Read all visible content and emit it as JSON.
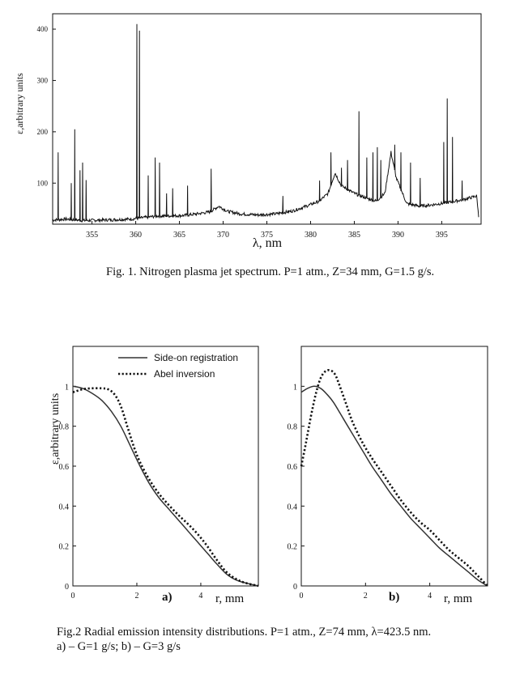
{
  "chart_data": [
    {
      "type": "line",
      "ylabel": "ε,arbitrary units",
      "xlabel": "λ, nm",
      "xlim": [
        350.5,
        399.5
      ],
      "ylim": [
        20,
        430
      ],
      "xticks": [
        355,
        360,
        365,
        370,
        375,
        380,
        385,
        390,
        395
      ],
      "yticks": [
        100,
        200,
        300,
        400
      ],
      "series": [
        {
          "baseline": [
            [
              350.5,
              28
            ],
            [
              352,
              30
            ],
            [
              354,
              27
            ],
            [
              356,
              28
            ],
            [
              358,
              29
            ],
            [
              359.5,
              30
            ],
            [
              361,
              33
            ],
            [
              362.5,
              36
            ],
            [
              364,
              36
            ],
            [
              365.5,
              37
            ],
            [
              367,
              40
            ],
            [
              368.5,
              44
            ],
            [
              369.5,
              55
            ],
            [
              370.5,
              45
            ],
            [
              372,
              40
            ],
            [
              374,
              38
            ],
            [
              376,
              40
            ],
            [
              378,
              46
            ],
            [
              379.5,
              55
            ],
            [
              381,
              65
            ],
            [
              382,
              80
            ],
            [
              382.8,
              120
            ],
            [
              383.5,
              95
            ],
            [
              385,
              80
            ],
            [
              386.5,
              70
            ],
            [
              387.5,
              65
            ],
            [
              388.5,
              80
            ],
            [
              389.2,
              160
            ],
            [
              389.8,
              110
            ],
            [
              391,
              60
            ],
            [
              392.5,
              55
            ],
            [
              394,
              58
            ],
            [
              396,
              63
            ],
            [
              397.5,
              68
            ],
            [
              399,
              75
            ],
            [
              399.3,
              20
            ]
          ],
          "lines": [
            [
              351.1,
              160
            ],
            [
              352.6,
              100
            ],
            [
              353.0,
              205
            ],
            [
              353.6,
              125
            ],
            [
              353.9,
              140
            ],
            [
              354.3,
              106
            ],
            [
              360.1,
              410
            ],
            [
              360.4,
              397
            ],
            [
              361.4,
              115
            ],
            [
              362.2,
              150
            ],
            [
              362.7,
              140
            ],
            [
              363.5,
              80
            ],
            [
              364.2,
              90
            ],
            [
              365.9,
              95
            ],
            [
              368.6,
              128
            ],
            [
              376.8,
              75
            ],
            [
              381.0,
              105
            ],
            [
              382.3,
              160
            ],
            [
              383.5,
              130
            ],
            [
              384.2,
              145
            ],
            [
              385.5,
              240
            ],
            [
              386.4,
              150
            ],
            [
              387.1,
              160
            ],
            [
              387.6,
              170
            ],
            [
              388.0,
              145
            ],
            [
              389.6,
              175
            ],
            [
              390.3,
              160
            ],
            [
              391.4,
              140
            ],
            [
              392.5,
              110
            ],
            [
              395.2,
              180
            ],
            [
              395.6,
              265
            ],
            [
              396.2,
              190
            ],
            [
              397.3,
              105
            ]
          ]
        }
      ]
    },
    {
      "type": "line",
      "ylabel": "ε,arbitrary units",
      "xlabel": "r, mm",
      "panel_label": "a)",
      "xlim": [
        0,
        5.8
      ],
      "ylim": [
        0,
        1.2
      ],
      "xticks": [
        0,
        2,
        4
      ],
      "yticks": [
        0,
        0.2,
        0.4,
        0.6,
        0.8,
        1
      ],
      "legend": "top-right",
      "series": [
        {
          "name": "Side-on registration",
          "style": "solid",
          "x": [
            0,
            0.3,
            0.6,
            0.9,
            1.2,
            1.5,
            1.8,
            2.1,
            2.4,
            2.7,
            3.0,
            3.3,
            3.6,
            3.9,
            4.2,
            4.5,
            4.8,
            5.1,
            5.4,
            5.8
          ],
          "y": [
            1.0,
            0.99,
            0.965,
            0.93,
            0.875,
            0.8,
            0.7,
            0.6,
            0.51,
            0.44,
            0.385,
            0.33,
            0.275,
            0.22,
            0.165,
            0.11,
            0.06,
            0.03,
            0.015,
            0.0
          ]
        },
        {
          "name": "Abel inversion",
          "style": "dotted",
          "x": [
            0,
            0.3,
            0.6,
            0.9,
            1.1,
            1.3,
            1.5,
            1.7,
            1.9,
            2.1,
            2.4,
            2.7,
            3.0,
            3.3,
            3.6,
            3.9,
            4.2,
            4.5,
            4.8,
            5.1,
            5.4,
            5.8
          ],
          "y": [
            0.97,
            0.985,
            0.99,
            0.99,
            0.985,
            0.96,
            0.9,
            0.8,
            0.7,
            0.62,
            0.53,
            0.46,
            0.405,
            0.355,
            0.31,
            0.26,
            0.2,
            0.13,
            0.07,
            0.035,
            0.015,
            0.0
          ]
        }
      ]
    },
    {
      "type": "line",
      "xlabel": "r, mm",
      "panel_label": "b)",
      "xlim": [
        0,
        5.8
      ],
      "ylim": [
        0,
        1.2
      ],
      "xticks": [
        0,
        2,
        4
      ],
      "yticks": [
        0,
        0.2,
        0.4,
        0.6,
        0.8,
        1
      ],
      "series": [
        {
          "style": "solid",
          "x": [
            0,
            0.2,
            0.4,
            0.6,
            0.8,
            1.0,
            1.3,
            1.6,
            1.9,
            2.2,
            2.5,
            2.8,
            3.1,
            3.4,
            3.7,
            4.0,
            4.3,
            4.6,
            4.9,
            5.2,
            5.5,
            5.8
          ],
          "y": [
            0.97,
            0.99,
            1.0,
            0.99,
            0.96,
            0.92,
            0.84,
            0.76,
            0.68,
            0.6,
            0.53,
            0.46,
            0.4,
            0.34,
            0.29,
            0.24,
            0.19,
            0.15,
            0.11,
            0.07,
            0.03,
            0.0
          ]
        },
        {
          "style": "dotted",
          "x": [
            0,
            0.15,
            0.3,
            0.45,
            0.6,
            0.75,
            0.9,
            1.05,
            1.2,
            1.4,
            1.6,
            1.9,
            2.2,
            2.5,
            2.8,
            3.1,
            3.4,
            3.7,
            4.0,
            4.3,
            4.6,
            4.9,
            5.2,
            5.5,
            5.8
          ],
          "y": [
            0.6,
            0.72,
            0.85,
            0.96,
            1.04,
            1.075,
            1.08,
            1.06,
            1.0,
            0.91,
            0.82,
            0.72,
            0.64,
            0.57,
            0.5,
            0.43,
            0.37,
            0.32,
            0.28,
            0.23,
            0.18,
            0.14,
            0.1,
            0.05,
            0.0
          ]
        }
      ]
    }
  ],
  "captions": {
    "fig1": "Fig. 1. Nitrogen plasma jet spectrum. P=1 atm., Z=34 mm, G=1.5 g/s.",
    "fig2_line1": "Fig.2 Radial emission intensity distributions. P=1 atm., Z=74 mm, λ=423.5 nm.",
    "fig2_line2": "a) – G=1 g/s;  b) – G=3 g/s"
  }
}
